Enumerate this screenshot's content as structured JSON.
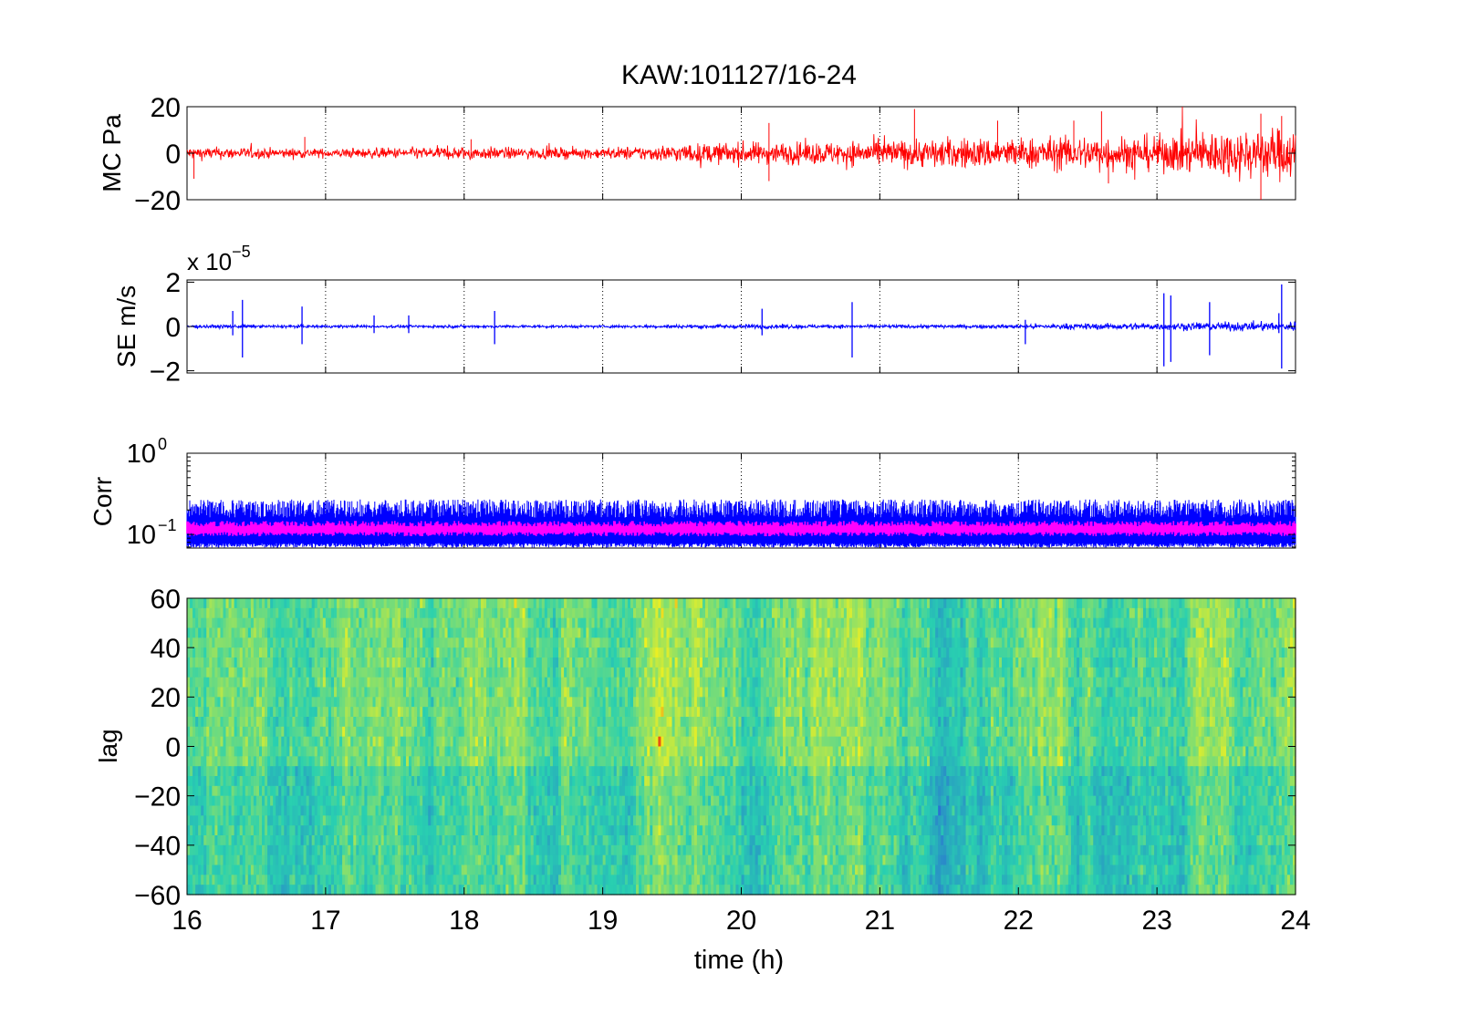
{
  "title": "KAW:101127/16-24",
  "colors": {
    "pressure": "#ff0000",
    "seismic": "#0000ff",
    "corr_envelope": "#0000ff",
    "corr_mean": "#ff00ff",
    "heat_low": "#2a60d8",
    "heat_mid": "#29d0b0",
    "heat_high": "#f0f020"
  },
  "chart_data": [
    {
      "type": "line",
      "name": "pressure-panel",
      "ylabel": "MC Pa",
      "xlim": [
        16,
        24
      ],
      "ylim": [
        -20,
        20
      ],
      "yticks": [
        20,
        0,
        -20
      ],
      "ytick_labels": [
        "20",
        "0",
        "−20"
      ],
      "xticks": [
        16,
        17,
        18,
        19,
        20,
        21,
        22,
        23,
        24
      ],
      "grid": "x-dotted",
      "series": [
        {
          "x": [
            16,
            16.5,
            17,
            17.5,
            18,
            18.5,
            19,
            19.5,
            20,
            20.5,
            21,
            21.5,
            22,
            22.5,
            23,
            23.5,
            24
          ],
          "amplitude": [
            3,
            2.5,
            2,
            2.5,
            3,
            2.5,
            2.5,
            4,
            5,
            5,
            6,
            7,
            7,
            8,
            8,
            11,
            12
          ],
          "peaks": [
            [
              16.05,
              -11
            ],
            [
              16.85,
              7
            ],
            [
              18.05,
              6
            ],
            [
              20.2,
              13
            ],
            [
              20.2,
              -12
            ],
            [
              21.25,
              19
            ],
            [
              21.85,
              14
            ],
            [
              22.4,
              14
            ],
            [
              22.6,
              18
            ],
            [
              22.65,
              -13
            ],
            [
              23.75,
              17
            ],
            [
              23.75,
              -21
            ],
            [
              23.9,
              16
            ]
          ]
        }
      ]
    },
    {
      "type": "line",
      "name": "seismic-panel",
      "ylabel": "SE m/s",
      "exponent_label": "x 10",
      "exponent_value": "−5",
      "xlim": [
        16,
        24
      ],
      "ylim": [
        -2.1,
        2.1
      ],
      "yticks": [
        2,
        0,
        -2
      ],
      "ytick_labels": [
        "2",
        "0",
        "−2"
      ],
      "xticks": [
        16,
        17,
        18,
        19,
        20,
        21,
        22,
        23,
        24
      ],
      "grid": "x-dotted",
      "series": [
        {
          "x": [
            16,
            17,
            18,
            19,
            19.5,
            20,
            21,
            22,
            22.5,
            23,
            23.5,
            24
          ],
          "amplitude": [
            0.12,
            0.1,
            0.1,
            0.1,
            0.12,
            0.15,
            0.12,
            0.15,
            0.22,
            0.25,
            0.3,
            0.35
          ],
          "spikes": [
            [
              16.33,
              0.7,
              -0.4
            ],
            [
              16.4,
              1.2,
              -1.4
            ],
            [
              16.83,
              0.9,
              -0.8
            ],
            [
              17.35,
              0.5,
              -0.3
            ],
            [
              17.6,
              0.5,
              -0.3
            ],
            [
              18.22,
              0.7,
              -0.8
            ],
            [
              20.15,
              0.8,
              -0.4
            ],
            [
              20.8,
              1.1,
              -1.4
            ],
            [
              22.05,
              0.3,
              -0.8
            ],
            [
              23.05,
              1.5,
              -1.8
            ],
            [
              23.1,
              1.4,
              -1.6
            ],
            [
              23.38,
              1.1,
              -1.3
            ],
            [
              23.88,
              0.6,
              -0.3
            ],
            [
              23.9,
              1.9,
              -1.9
            ]
          ]
        }
      ]
    },
    {
      "type": "line",
      "name": "correlation-panel",
      "ylabel": "Corr",
      "yscale": "log",
      "xlim": [
        16,
        24
      ],
      "ylim": [
        0.068,
        1
      ],
      "yticks": [
        1,
        0.1
      ],
      "ytick_labels": [
        {
          "base": "10",
          "exp": "0"
        },
        {
          "base": "10",
          "exp": "−1"
        }
      ],
      "xticks": [
        16,
        17,
        18,
        19,
        20,
        21,
        22,
        23,
        24
      ],
      "grid": "x-dotted",
      "series": [
        {
          "name": "",
          "kind": "envelope-max",
          "typical": 0.2,
          "max": 0.27
        },
        {
          "name": "",
          "kind": "envelope-min",
          "typical": 0.075
        },
        {
          "name": "",
          "kind": "mean",
          "low": 0.1,
          "high": 0.14
        }
      ]
    },
    {
      "type": "heatmap",
      "name": "lag-panel",
      "ylabel": "lag",
      "xlabel": "time (h)",
      "xlim": [
        16,
        24
      ],
      "ylim": [
        -60,
        60
      ],
      "yticks": [
        60,
        40,
        20,
        0,
        -20,
        -40,
        -60
      ],
      "ytick_labels": [
        "60",
        "40",
        "20",
        "0",
        "−20",
        "−40",
        "−60"
      ],
      "xticks": [
        16,
        17,
        18,
        19,
        20,
        21,
        22,
        23,
        24
      ],
      "xtick_labels": [
        "16",
        "17",
        "18",
        "19",
        "20",
        "21",
        "22",
        "23",
        "24"
      ],
      "columns": 400,
      "rows": 30,
      "texture": "noise"
    }
  ]
}
